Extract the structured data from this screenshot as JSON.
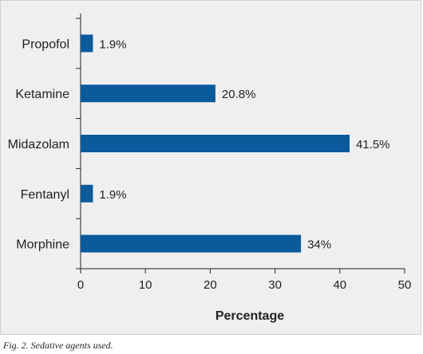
{
  "chart_data": {
    "type": "bar",
    "orientation": "horizontal",
    "categories": [
      "Propofol",
      "Ketamine",
      "Midazolam",
      "Fentanyl",
      "Morphine"
    ],
    "values": [
      1.9,
      20.8,
      41.5,
      1.9,
      34
    ],
    "value_labels": [
      "1.9%",
      "20.8%",
      "41.5%",
      "1.9%",
      "34%"
    ],
    "xlabel": "Percentage",
    "ylabel": "",
    "xlim": [
      0,
      50
    ],
    "xticks": [
      0,
      10,
      20,
      30,
      40,
      50
    ],
    "grid": false,
    "bar_color": "#0b5a9c",
    "background_color": "#efefef"
  },
  "caption": "Fig. 2. Sedative agents used."
}
